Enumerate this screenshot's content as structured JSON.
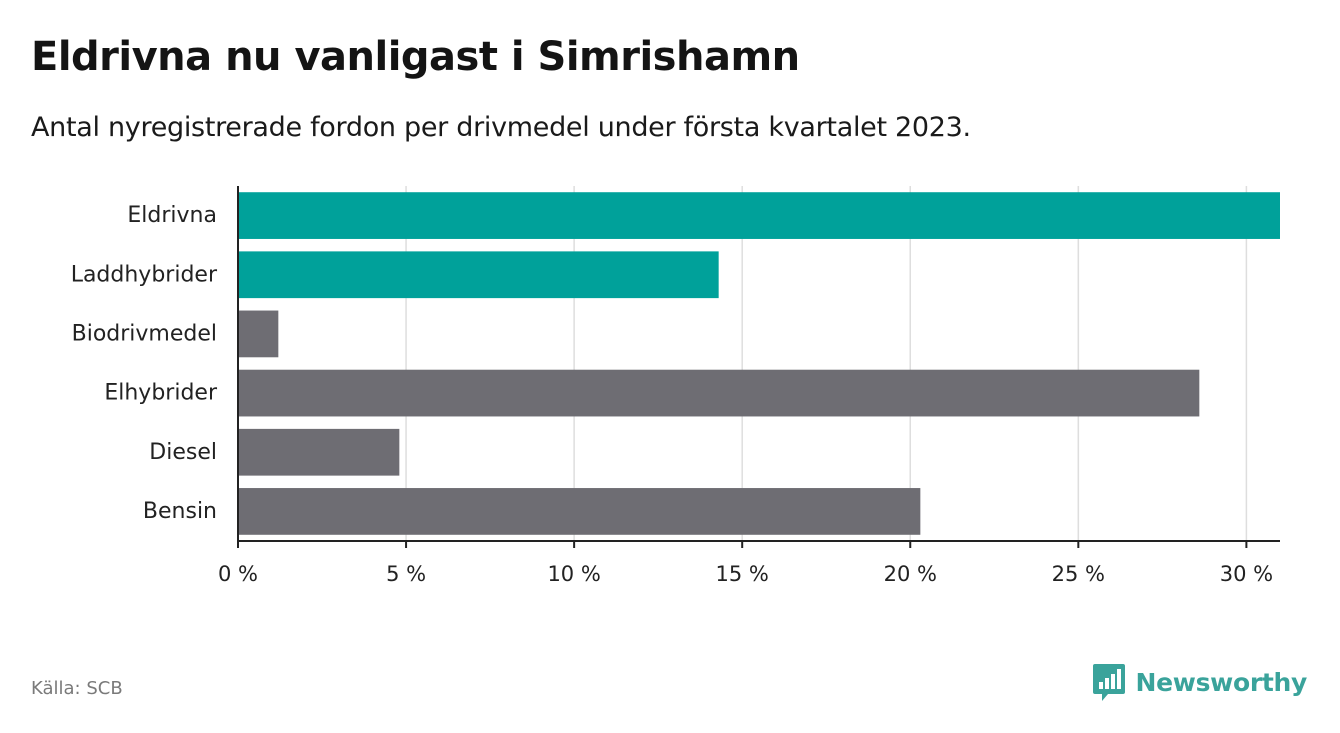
{
  "header": {
    "title": "Eldrivna nu vanligast i Simrishamn",
    "subtitle": "Antal nyregistrerade fordon per drivmedel under första kvartalet 2023."
  },
  "footer": {
    "source": "Källa: SCB",
    "brand": "Newsworthy",
    "brand_icon": "bar-chart-logo-icon"
  },
  "colors": {
    "highlight": "#00a19a",
    "default": "#6e6d73",
    "grid": "#dedede",
    "brand": "#3aa39b"
  },
  "chart_data": {
    "type": "bar",
    "orientation": "horizontal",
    "categories": [
      "Eldrivna",
      "Laddhybrider",
      "Biodrivmedel",
      "Elhybrider",
      "Diesel",
      "Bensin"
    ],
    "values": [
      31.0,
      14.3,
      1.2,
      28.6,
      4.8,
      20.3
    ],
    "highlighted": [
      "Eldrivna",
      "Laddhybrider"
    ],
    "xlim": [
      0,
      31
    ],
    "xticks": [
      0,
      5,
      10,
      15,
      20,
      25,
      30
    ],
    "xtick_labels": [
      "0 %",
      "5 %",
      "10 %",
      "15 %",
      "20 %",
      "25 %",
      "30 %"
    ],
    "xlabel": "",
    "ylabel": "",
    "grid": "vertical"
  }
}
